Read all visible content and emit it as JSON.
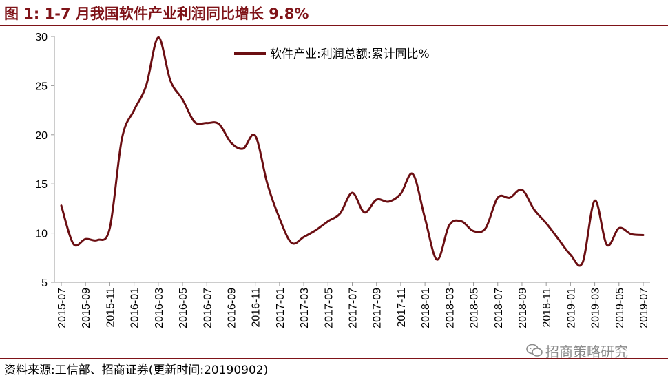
{
  "title": "图 1:  1-7 月我国软件产业利润同比增长 9.8%",
  "source": "资料来源:工信部、招商证券(更新时间:20190902)",
  "watermark": "招商策略研究",
  "colors": {
    "accent": "#7f1318",
    "series": "#6b0e12"
  },
  "chart_data": {
    "type": "line",
    "title": "图 1:  1-7 月我国软件产业利润同比增长 9.8%",
    "xlabel": "",
    "ylabel": "",
    "ylim": [
      5,
      30
    ],
    "yticks": [
      5,
      10,
      15,
      20,
      25,
      30
    ],
    "grid": false,
    "legend_position": "top-center",
    "x_tick_labels": [
      "2015-07",
      "2015-09",
      "2015-11",
      "2016-01",
      "2016-03",
      "2016-05",
      "2016-07",
      "2016-09",
      "2016-11",
      "2017-01",
      "2017-03",
      "2017-05",
      "2017-07",
      "2017-09",
      "2017-11",
      "2018-01",
      "2018-03",
      "2018-05",
      "2018-07",
      "2018-09",
      "2018-11",
      "2019-01",
      "2019-03",
      "2019-05",
      "2019-07"
    ],
    "x": [
      "2015-07",
      "2015-08",
      "2015-09",
      "2015-10",
      "2015-11",
      "2015-12",
      "2016-01",
      "2016-02",
      "2016-03",
      "2016-04",
      "2016-05",
      "2016-06",
      "2016-07",
      "2016-08",
      "2016-09",
      "2016-10",
      "2016-11",
      "2016-12",
      "2017-01",
      "2017-02",
      "2017-03",
      "2017-04",
      "2017-05",
      "2017-06",
      "2017-07",
      "2017-08",
      "2017-09",
      "2017-10",
      "2017-11",
      "2017-12",
      "2018-01",
      "2018-02",
      "2018-03",
      "2018-04",
      "2018-05",
      "2018-06",
      "2018-07",
      "2018-08",
      "2018-09",
      "2018-10",
      "2018-11",
      "2018-12",
      "2019-01",
      "2019-02",
      "2019-03",
      "2019-04",
      "2019-05",
      "2019-06",
      "2019-07"
    ],
    "series": [
      {
        "name": "软件产业:利润总额:累计同比%",
        "values": [
          12.8,
          8.9,
          9.4,
          9.3,
          10.5,
          19.6,
          22.5,
          25.0,
          29.9,
          25.5,
          23.6,
          21.3,
          21.2,
          21.1,
          19.2,
          18.6,
          19.9,
          15.0,
          11.5,
          9.0,
          9.6,
          10.3,
          11.2,
          12.0,
          14.1,
          12.1,
          13.4,
          13.2,
          14.0,
          16.0,
          11.5,
          7.3,
          10.8,
          11.2,
          10.2,
          10.5,
          13.6,
          13.6,
          14.4,
          12.4,
          11.0,
          9.4,
          7.8,
          7.0,
          13.3,
          8.8,
          10.5,
          9.9,
          9.8
        ]
      }
    ]
  }
}
